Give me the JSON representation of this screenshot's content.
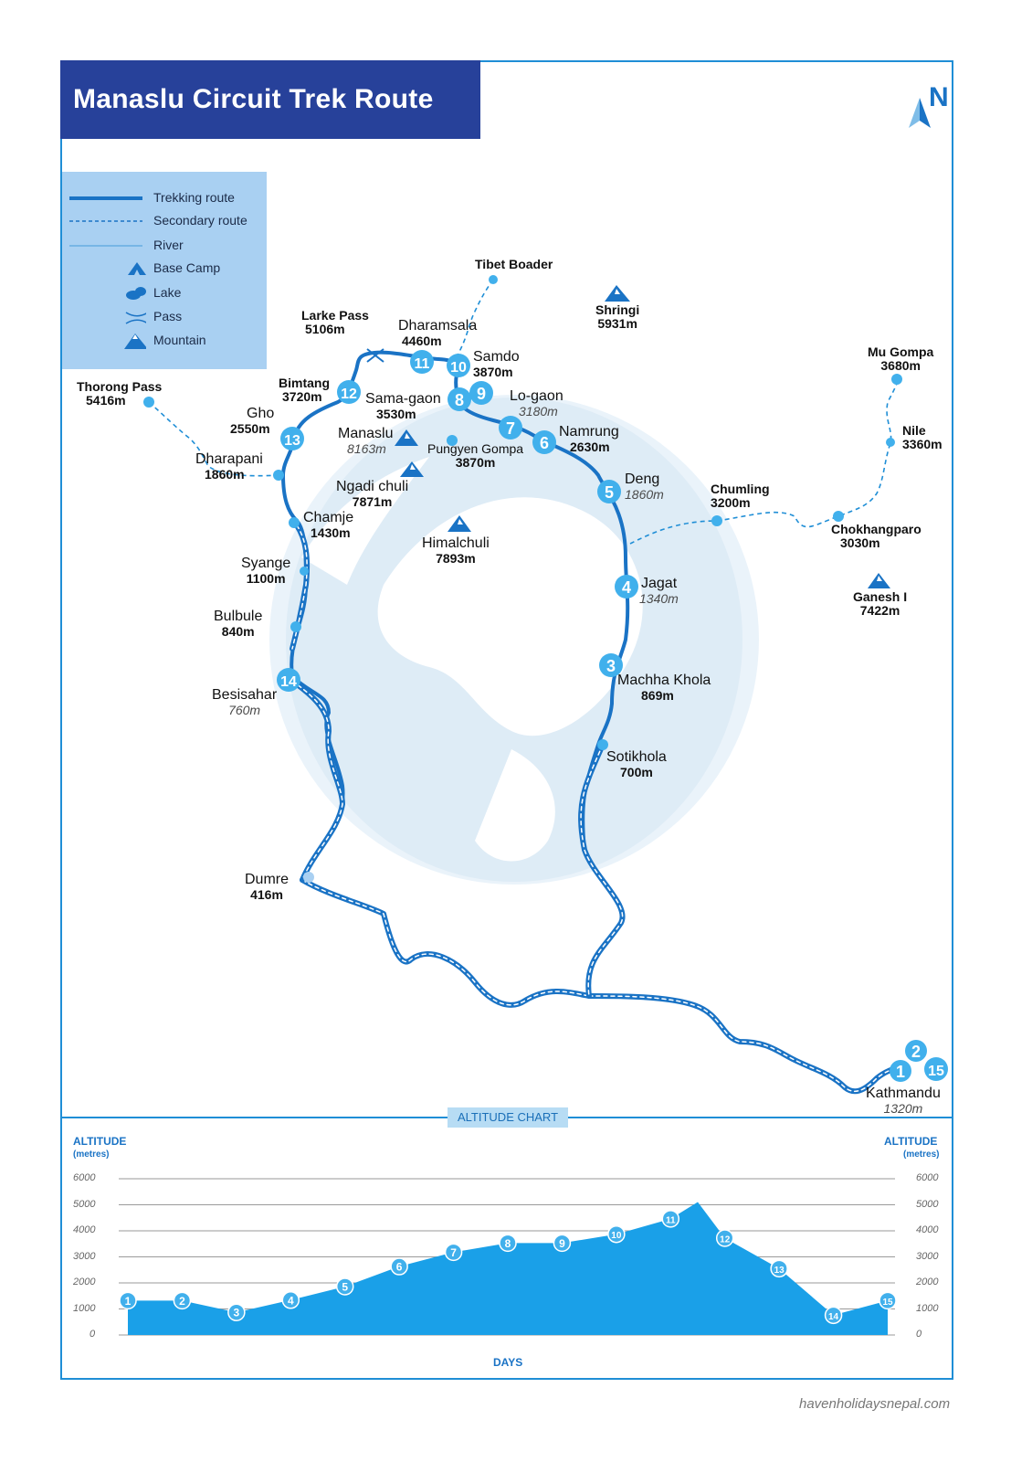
{
  "title": "Manaslu Circuit Trek Route",
  "north": "N",
  "legend": [
    {
      "label": "Trekking route",
      "icon": "trekking-route-line"
    },
    {
      "label": "Secondary route",
      "icon": "secondary-route-line"
    },
    {
      "label": "River",
      "icon": "river-line"
    },
    {
      "label": "Base Camp",
      "icon": "base-camp-icon"
    },
    {
      "label": "Lake",
      "icon": "lake-icon"
    },
    {
      "label": "Pass",
      "icon": "pass-icon"
    },
    {
      "label": "Mountain",
      "icon": "mountain-icon"
    }
  ],
  "places": {
    "tibet_border": {
      "name": "Tibet Boader"
    },
    "shringi": {
      "name": "Shringi",
      "alt": "5931m"
    },
    "larke_pass": {
      "name": "Larke Pass",
      "alt": "5106m"
    },
    "dharamsala": {
      "name": "Dharamsala",
      "alt": "4460m"
    },
    "samdo": {
      "name": "Samdo",
      "alt": "3870m"
    },
    "mu_gompa": {
      "name": "Mu Gompa",
      "alt": "3680m"
    },
    "thorong_pass": {
      "name": "Thorong Pass",
      "alt": "5416m"
    },
    "bimtang": {
      "name": "Bimtang",
      "alt": "3720m"
    },
    "sama_gaon": {
      "name": "Sama-gaon",
      "alt": "3530m"
    },
    "lo_gaon": {
      "name": "Lo-gaon",
      "alt": "3180m"
    },
    "gho": {
      "name": "Gho",
      "alt": "2550m"
    },
    "manaslu": {
      "name": "Manaslu",
      "alt": "8163m"
    },
    "pungyen_gompa": {
      "name": "Pungyen Gompa",
      "alt": "3870m"
    },
    "namrung": {
      "name": "Namrung",
      "alt": "2630m"
    },
    "nile": {
      "name": "Nile",
      "alt": "3360m"
    },
    "dharapani": {
      "name": "Dharapani",
      "alt": "1860m"
    },
    "ngadi_chuli": {
      "name": "Ngadi chuli",
      "alt": "7871m"
    },
    "deng": {
      "name": "Deng",
      "alt": "1860m"
    },
    "chumling": {
      "name": "Chumling",
      "alt": "3200m"
    },
    "chamje": {
      "name": "Chamje",
      "alt": "1430m"
    },
    "chokhangparo": {
      "name": "Chokhangparo",
      "alt": "3030m"
    },
    "himalchuli": {
      "name": "Himalchuli",
      "alt": "7893m"
    },
    "syange": {
      "name": "Syange",
      "alt": "1100m"
    },
    "jagat": {
      "name": "Jagat",
      "alt": "1340m"
    },
    "ganesh_i": {
      "name": "Ganesh I",
      "alt": "7422m"
    },
    "bulbule": {
      "name": "Bulbule",
      "alt": "840m"
    },
    "machha_khola": {
      "name": "Machha Khola",
      "alt": "869m"
    },
    "besisahar": {
      "name": "Besisahar",
      "alt": "760m"
    },
    "sotikhola": {
      "name": "Sotikhola",
      "alt": "700m"
    },
    "dumre": {
      "name": "Dumre",
      "alt": "416m"
    },
    "kathmandu": {
      "name": "Kathmandu",
      "alt": "1320m"
    }
  },
  "day_markers": [
    "1",
    "2",
    "3",
    "4",
    "5",
    "6",
    "7",
    "8",
    "9",
    "10",
    "11",
    "12",
    "13",
    "14",
    "15"
  ],
  "altitude_chart": {
    "badge": "ALTITUDE CHART",
    "left_title": "ALTITUDE",
    "left_sub": "(metres)",
    "right_title": "ALTITUDE",
    "right_sub": "(metres)",
    "x_label": "DAYS",
    "y_ticks": [
      "6000",
      "5000",
      "4000",
      "3000",
      "2000",
      "1000",
      "0"
    ]
  },
  "chart_data": {
    "type": "area",
    "title": "ALTITUDE CHART",
    "xlabel": "DAYS",
    "ylabel": "ALTITUDE (metres)",
    "ylim": [
      0,
      6000
    ],
    "x": [
      1,
      2,
      3,
      4,
      5,
      6,
      7,
      8,
      9,
      10,
      11,
      12,
      13,
      14,
      15
    ],
    "values": [
      1320,
      1320,
      869,
      1340,
      1860,
      2630,
      3180,
      3530,
      3530,
      3870,
      4460,
      3720,
      2550,
      760,
      1320
    ],
    "peak": {
      "label": "Larke Pass",
      "value": 5106
    },
    "grid": true,
    "color": "#1aa0e8"
  },
  "website": "havenholidaysnepal.com",
  "colors": {
    "route": "#1a73c5",
    "title_bg": "#27419a",
    "marker": "#41b0ec",
    "legend_bg": "#a9d0f2"
  }
}
